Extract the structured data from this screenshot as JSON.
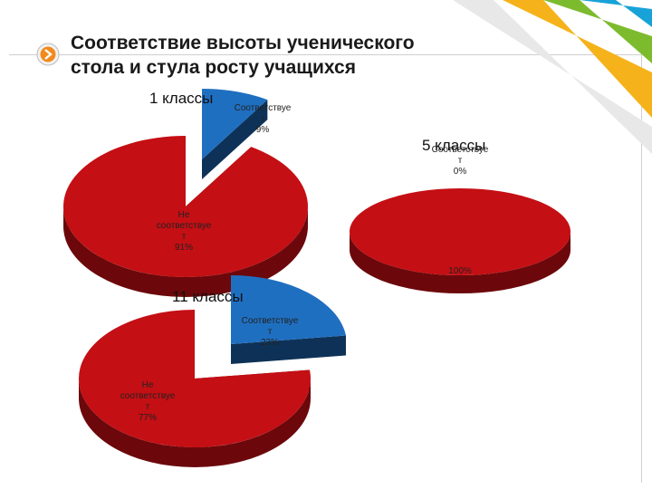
{
  "slide": {
    "title_line1": "Соответствие высоты ученического",
    "title_line2": "стола и стула росту учащихся"
  },
  "colors": {
    "complies": "#1f6fc1",
    "not_complies": "#c40f14"
  },
  "chart_data": [
    {
      "type": "pie",
      "title": "1 классы",
      "categories": [
        "Соответствует",
        "Не соответствует"
      ],
      "values": [
        9,
        91
      ],
      "data_labels": [
        [
          "Соответствуе",
          "т",
          "9%"
        ],
        [
          "Не",
          "соответствуе",
          "т",
          "91%"
        ]
      ]
    },
    {
      "type": "pie",
      "title": "5 классы",
      "categories": [
        "Соответствует",
        "Не соответствует"
      ],
      "values": [
        0,
        100
      ],
      "data_labels": [
        [
          "Соответствуе",
          "т",
          "0%"
        ],
        [
          "100%"
        ]
      ]
    },
    {
      "type": "pie",
      "title": "11 классы",
      "categories": [
        "Соответствует",
        "Не соответствует"
      ],
      "values": [
        23,
        77
      ],
      "data_labels": [
        [
          "Соответствуе",
          "т",
          "23%"
        ],
        [
          "Не",
          "соответствуе",
          "т",
          "77%"
        ]
      ]
    }
  ]
}
